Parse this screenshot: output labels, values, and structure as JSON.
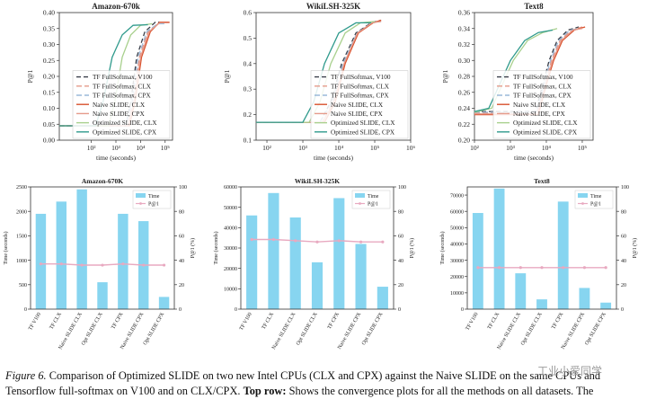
{
  "line_legend": [
    {
      "label": "TF FullSoftmax, V100",
      "color": "#3a3f4a",
      "dash": "5,3"
    },
    {
      "label": "TF FullSoftmax, CLX",
      "color": "#e59a8a",
      "dash": "6,3"
    },
    {
      "label": "TF FullSoftmax, CPX",
      "color": "#9ab8d8",
      "dash": "6,3"
    },
    {
      "label": "Naive SLIDE, CLX",
      "color": "#d9512c",
      "dash": ""
    },
    {
      "label": "Naive SLIDE, CPX",
      "color": "#e59a8a",
      "dash": ""
    },
    {
      "label": "Optimized SLIDE, CLX",
      "color": "#a8d08d",
      "dash": ""
    },
    {
      "label": "Optimized SLIDE, CPX",
      "color": "#2f9a8c",
      "dash": ""
    }
  ],
  "bar_legend": {
    "time": "Time",
    "p1": "P@1"
  },
  "bar_categories": [
    "TF V100",
    "TF CLX",
    "Naive SLIDE CLX",
    "Opt SLIDE CLX",
    "TF CPX",
    "Naive SLIDE CPX",
    "Opt SLIDE CPX"
  ],
  "colors": {
    "bar": "#87d5f0",
    "p1_line": "#e8a9c0",
    "axis": "#333333"
  },
  "chart_data": [
    {
      "type": "line",
      "title": "Amazon-670k",
      "xlabel": "time (seconds)",
      "ylabel": "P@1",
      "xscale": "log",
      "xlim": [
        5,
        200000
      ],
      "ylim": [
        0,
        0.4
      ],
      "xticks": [
        {
          "v": 100,
          "label": "10²"
        },
        {
          "v": 1000,
          "label": "10³"
        },
        {
          "v": 10000,
          "label": "10⁴"
        },
        {
          "v": 100000,
          "label": "10⁵"
        }
      ],
      "yticks": [
        {
          "v": 0,
          "label": "0.00"
        },
        {
          "v": 0.05,
          "label": "0.05"
        },
        {
          "v": 0.1,
          "label": "0.10"
        },
        {
          "v": 0.15,
          "label": "0.15"
        },
        {
          "v": 0.2,
          "label": "0.20"
        },
        {
          "v": 0.25,
          "label": "0.25"
        },
        {
          "v": 0.3,
          "label": "0.30"
        },
        {
          "v": 0.35,
          "label": "0.35"
        },
        {
          "v": 0.4,
          "label": "0.40"
        }
      ],
      "series": [
        {
          "name": "TF FullSoftmax, V100",
          "x": [
            5,
            2500,
            4000,
            7000,
            15000,
            40000,
            100000
          ],
          "y": [
            0.045,
            0.045,
            0.12,
            0.26,
            0.34,
            0.37,
            0.37
          ]
        },
        {
          "name": "TF FullSoftmax, CLX",
          "x": [
            5,
            3000,
            5000,
            9000,
            20000,
            60000,
            150000
          ],
          "y": [
            0.045,
            0.045,
            0.12,
            0.26,
            0.34,
            0.37,
            0.37
          ]
        },
        {
          "name": "TF FullSoftmax, CPX",
          "x": [
            5,
            2500,
            4500,
            8000,
            18000,
            50000,
            120000
          ],
          "y": [
            0.045,
            0.045,
            0.12,
            0.26,
            0.34,
            0.365,
            0.365
          ]
        },
        {
          "name": "Naive SLIDE, CLX",
          "x": [
            5,
            3500,
            6000,
            11000,
            25000,
            60000,
            150000
          ],
          "y": [
            0.045,
            0.045,
            0.12,
            0.26,
            0.34,
            0.37,
            0.37
          ]
        },
        {
          "name": "Naive SLIDE, CPX",
          "x": [
            5,
            3000,
            5500,
            10000,
            22000,
            60000,
            150000
          ],
          "y": [
            0.045,
            0.045,
            0.12,
            0.26,
            0.34,
            0.368,
            0.368
          ]
        },
        {
          "name": "Optimized SLIDE, CLX",
          "x": [
            5,
            500,
            900,
            1800,
            4000,
            10000,
            30000
          ],
          "y": [
            0.045,
            0.045,
            0.12,
            0.26,
            0.33,
            0.36,
            0.365
          ]
        },
        {
          "name": "Optimized SLIDE, CPX",
          "x": [
            5,
            150,
            300,
            700,
            1800,
            5000,
            20000
          ],
          "y": [
            0.045,
            0.045,
            0.12,
            0.26,
            0.33,
            0.36,
            0.362
          ]
        }
      ]
    },
    {
      "type": "line",
      "title": "WikiLSH-325K",
      "xlabel": "time (seconds)",
      "ylabel": "P@1",
      "xscale": "log",
      "xlim": [
        50,
        1000000
      ],
      "ylim": [
        0.1,
        0.6
      ],
      "xticks": [
        {
          "v": 100,
          "label": "10²"
        },
        {
          "v": 1000,
          "label": "10³"
        },
        {
          "v": 10000,
          "label": "10⁴"
        },
        {
          "v": 100000,
          "label": "10⁵"
        },
        {
          "v": 1000000,
          "label": "10⁶"
        }
      ],
      "yticks": [
        {
          "v": 0.1,
          "label": "0.1"
        },
        {
          "v": 0.2,
          "label": "0.2"
        },
        {
          "v": 0.3,
          "label": "0.3"
        },
        {
          "v": 0.4,
          "label": "0.4"
        },
        {
          "v": 0.5,
          "label": "0.5"
        },
        {
          "v": 0.6,
          "label": "0.6"
        }
      ],
      "series": [
        {
          "name": "TF FullSoftmax, V100",
          "x": [
            50,
            3000,
            6000,
            12000,
            30000,
            80000,
            150000
          ],
          "y": [
            0.17,
            0.17,
            0.25,
            0.4,
            0.52,
            0.56,
            0.57
          ]
        },
        {
          "name": "TF FullSoftmax, CLX",
          "x": [
            50,
            3500,
            7000,
            14000,
            35000,
            90000,
            150000
          ],
          "y": [
            0.17,
            0.17,
            0.25,
            0.4,
            0.52,
            0.56,
            0.57
          ]
        },
        {
          "name": "TF FullSoftmax, CPX",
          "x": [
            50,
            3000,
            6500,
            13000,
            32000,
            85000,
            150000
          ],
          "y": [
            0.17,
            0.17,
            0.25,
            0.4,
            0.52,
            0.56,
            0.565
          ]
        },
        {
          "name": "Naive SLIDE, CLX",
          "x": [
            50,
            4000,
            8000,
            15000,
            35000,
            90000,
            150000
          ],
          "y": [
            0.17,
            0.17,
            0.25,
            0.4,
            0.52,
            0.56,
            0.57
          ]
        },
        {
          "name": "Naive SLIDE, CPX",
          "x": [
            50,
            3500,
            7500,
            14000,
            33000,
            85000,
            150000
          ],
          "y": [
            0.17,
            0.17,
            0.25,
            0.4,
            0.52,
            0.56,
            0.565
          ]
        },
        {
          "name": "Optimized SLIDE, CLX",
          "x": [
            50,
            1500,
            3000,
            6000,
            15000,
            40000,
            100000
          ],
          "y": [
            0.17,
            0.17,
            0.25,
            0.4,
            0.52,
            0.56,
            0.565
          ]
        },
        {
          "name": "Optimized SLIDE, CPX",
          "x": [
            50,
            1000,
            2000,
            4000,
            10000,
            30000,
            80000
          ],
          "y": [
            0.17,
            0.17,
            0.25,
            0.4,
            0.52,
            0.56,
            0.56
          ]
        }
      ]
    },
    {
      "type": "line",
      "title": "Text8",
      "xlabel": "time (seconds)",
      "ylabel": "P@1",
      "xscale": "log",
      "xlim": [
        100,
        200000
      ],
      "ylim": [
        0.2,
        0.36
      ],
      "xticks": [
        {
          "v": 100,
          "label": "10²"
        },
        {
          "v": 1000,
          "label": "10³"
        },
        {
          "v": 10000,
          "label": "10⁴"
        },
        {
          "v": 100000,
          "label": "10⁵"
        }
      ],
      "yticks": [
        {
          "v": 0.2,
          "label": "0.20"
        },
        {
          "v": 0.22,
          "label": "0.22"
        },
        {
          "v": 0.24,
          "label": "0.24"
        },
        {
          "v": 0.26,
          "label": "0.26"
        },
        {
          "v": 0.28,
          "label": "0.28"
        },
        {
          "v": 0.3,
          "label": "0.30"
        },
        {
          "v": 0.32,
          "label": "0.32"
        },
        {
          "v": 0.34,
          "label": "0.34"
        },
        {
          "v": 0.36,
          "label": "0.36"
        }
      ],
      "series": [
        {
          "name": "TF FullSoftmax, V100",
          "x": [
            100,
            5000,
            8000,
            12000,
            20000,
            40000,
            80000
          ],
          "y": [
            0.236,
            0.236,
            0.27,
            0.3,
            0.325,
            0.338,
            0.342
          ]
        },
        {
          "name": "TF FullSoftmax, CLX",
          "x": [
            100,
            6000,
            9000,
            14000,
            24000,
            50000,
            100000
          ],
          "y": [
            0.234,
            0.234,
            0.27,
            0.3,
            0.325,
            0.338,
            0.342
          ]
        },
        {
          "name": "TF FullSoftmax, CPX",
          "x": [
            100,
            5500,
            8500,
            13000,
            22000,
            45000,
            90000
          ],
          "y": [
            0.235,
            0.235,
            0.27,
            0.3,
            0.325,
            0.338,
            0.34
          ]
        },
        {
          "name": "Naive SLIDE, CLX",
          "x": [
            100,
            6000,
            10000,
            16000,
            28000,
            60000,
            120000
          ],
          "y": [
            0.232,
            0.232,
            0.27,
            0.3,
            0.325,
            0.338,
            0.342
          ]
        },
        {
          "name": "Naive SLIDE, CPX",
          "x": [
            100,
            5500,
            9500,
            15000,
            26000,
            55000,
            100000
          ],
          "y": [
            0.233,
            0.233,
            0.27,
            0.3,
            0.325,
            0.338,
            0.34
          ]
        },
        {
          "name": "Optimized SLIDE, CLX",
          "x": [
            100,
            300,
            600,
            1200,
            3000,
            8000,
            20000
          ],
          "y": [
            0.235,
            0.24,
            0.27,
            0.3,
            0.325,
            0.335,
            0.34
          ]
        },
        {
          "name": "Optimized SLIDE, CPX",
          "x": [
            100,
            250,
            500,
            1000,
            2500,
            6000,
            15000
          ],
          "y": [
            0.236,
            0.24,
            0.27,
            0.3,
            0.325,
            0.335,
            0.338
          ]
        }
      ]
    },
    {
      "type": "bar",
      "title": "Amazon-670K",
      "ylabel": "Time (seconds)",
      "y2label": "P@1 (%)",
      "ylim": [
        0,
        2500
      ],
      "y2lim": [
        0,
        100
      ],
      "yticks": [
        {
          "v": 0,
          "label": "0"
        },
        {
          "v": 500,
          "label": "500"
        },
        {
          "v": 1000,
          "label": "1000"
        },
        {
          "v": 1500,
          "label": "1500"
        },
        {
          "v": 2000,
          "label": "2000"
        },
        {
          "v": 2500,
          "label": "2500"
        }
      ],
      "y2ticks": [
        {
          "v": 0,
          "label": "0"
        },
        {
          "v": 20,
          "label": "20"
        },
        {
          "v": 40,
          "label": "40"
        },
        {
          "v": 60,
          "label": "60"
        },
        {
          "v": 80,
          "label": "80"
        },
        {
          "v": 100,
          "label": "100"
        }
      ],
      "time": [
        1950,
        2200,
        2450,
        550,
        1950,
        1800,
        250
      ],
      "p1": [
        37,
        37,
        36,
        36,
        37,
        36,
        36
      ]
    },
    {
      "type": "bar",
      "title": "WikiLSH-325K",
      "ylabel": "Time (seconds)",
      "y2label": "P@1 (%)",
      "ylim": [
        0,
        60000
      ],
      "y2lim": [
        0,
        100
      ],
      "yticks": [
        {
          "v": 0,
          "label": "0"
        },
        {
          "v": 10000,
          "label": "10000"
        },
        {
          "v": 20000,
          "label": "20000"
        },
        {
          "v": 30000,
          "label": "30000"
        },
        {
          "v": 40000,
          "label": "40000"
        },
        {
          "v": 50000,
          "label": "50000"
        },
        {
          "v": 60000,
          "label": "60000"
        }
      ],
      "y2ticks": [
        {
          "v": 0,
          "label": "0"
        },
        {
          "v": 20,
          "label": "20"
        },
        {
          "v": 40,
          "label": "40"
        },
        {
          "v": 60,
          "label": "60"
        },
        {
          "v": 80,
          "label": "80"
        },
        {
          "v": 100,
          "label": "100"
        }
      ],
      "time": [
        46000,
        57000,
        45000,
        23000,
        54500,
        32000,
        11000
      ],
      "p1": [
        57,
        57,
        56,
        55,
        56,
        55,
        55
      ]
    },
    {
      "type": "bar",
      "title": "Text8",
      "ylabel": "Time (seconds)",
      "y2label": "P@1 (%)",
      "ylim": [
        0,
        75000
      ],
      "y2lim": [
        0,
        100
      ],
      "yticks": [
        {
          "v": 0,
          "label": "0"
        },
        {
          "v": 10000,
          "label": "10000"
        },
        {
          "v": 20000,
          "label": "20000"
        },
        {
          "v": 30000,
          "label": "30000"
        },
        {
          "v": 40000,
          "label": "40000"
        },
        {
          "v": 50000,
          "label": "50000"
        },
        {
          "v": 60000,
          "label": "60000"
        },
        {
          "v": 70000,
          "label": "70000"
        }
      ],
      "y2ticks": [
        {
          "v": 0,
          "label": "0"
        },
        {
          "v": 20,
          "label": "20"
        },
        {
          "v": 40,
          "label": "40"
        },
        {
          "v": 60,
          "label": "60"
        },
        {
          "v": 80,
          "label": "80"
        },
        {
          "v": 100,
          "label": "100"
        }
      ],
      "time": [
        59000,
        74000,
        22000,
        6000,
        66000,
        13000,
        4000
      ],
      "p1": [
        34,
        34,
        34,
        34,
        34,
        34,
        34
      ]
    }
  ],
  "caption": {
    "label": "Figure 6.",
    "text1": " Comparison of Optimized SLIDE on two new Intel CPUs (CLX and CPX) against the Naive SLIDE on the same CPUs and Tensorflow full-softmax on V100 and on CLX/CPX. ",
    "bold": "Top row:",
    "text2": " Shows the convergence plots for all the methods on all datasets. The"
  },
  "watermark": "工业小爱同学"
}
